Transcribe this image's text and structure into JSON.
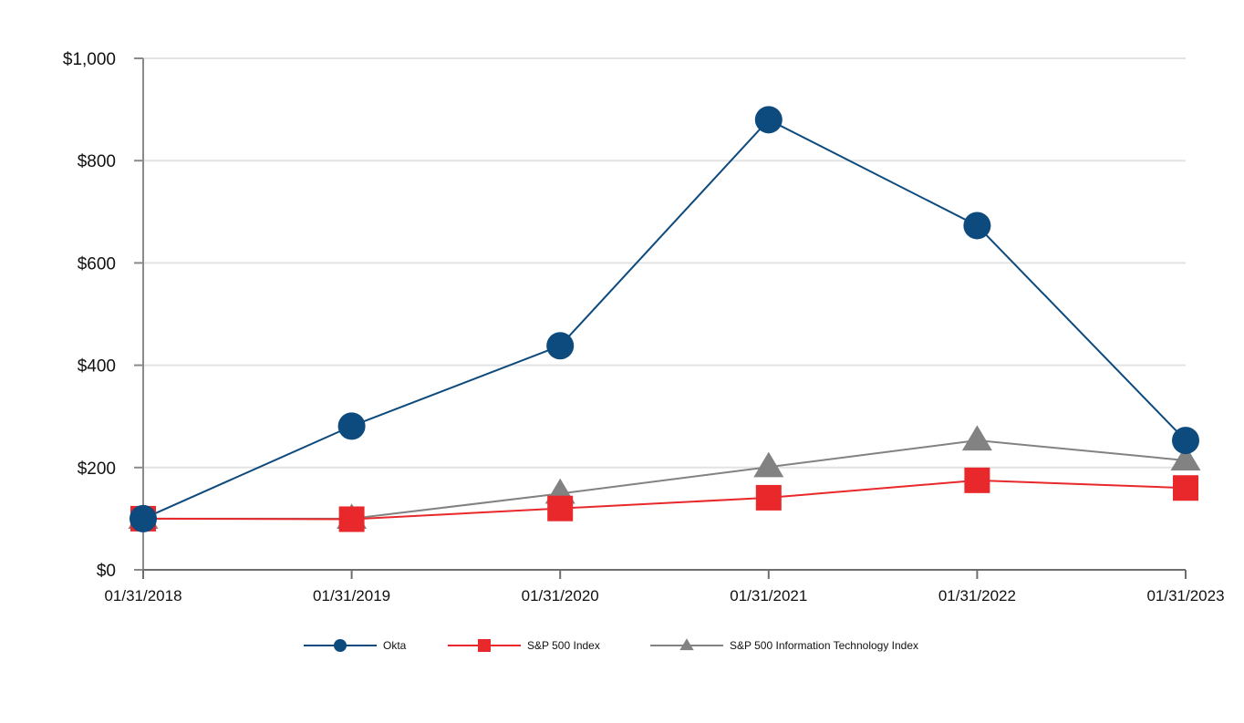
{
  "chart_data": {
    "type": "line",
    "title": "",
    "xlabel": "",
    "ylabel": "",
    "categories": [
      "01/31/2018",
      "01/31/2019",
      "01/31/2020",
      "01/31/2021",
      "01/31/2022",
      "01/31/2023"
    ],
    "y_tick_values": [
      0,
      200,
      400,
      600,
      800,
      1000
    ],
    "y_tick_labels": [
      "$0",
      "$200",
      "$400",
      "$600",
      "$800",
      "$1,000"
    ],
    "ylim": [
      0,
      1000
    ],
    "grid": true,
    "legend_position": "bottom",
    "series": [
      {
        "name": "Okta",
        "color": "#0d4a7d",
        "marker": "circle",
        "values": [
          100,
          281,
          438,
          880,
          673,
          253
        ]
      },
      {
        "name": "S&P 500 Index",
        "color": "#e8282b",
        "marker": "square",
        "values": [
          100,
          99,
          120,
          141,
          175,
          160
        ]
      },
      {
        "name": "S&P 500 Information Technology Index",
        "color": "#828282",
        "marker": "triangle",
        "values": [
          100,
          100,
          149,
          201,
          253,
          214
        ]
      }
    ]
  }
}
